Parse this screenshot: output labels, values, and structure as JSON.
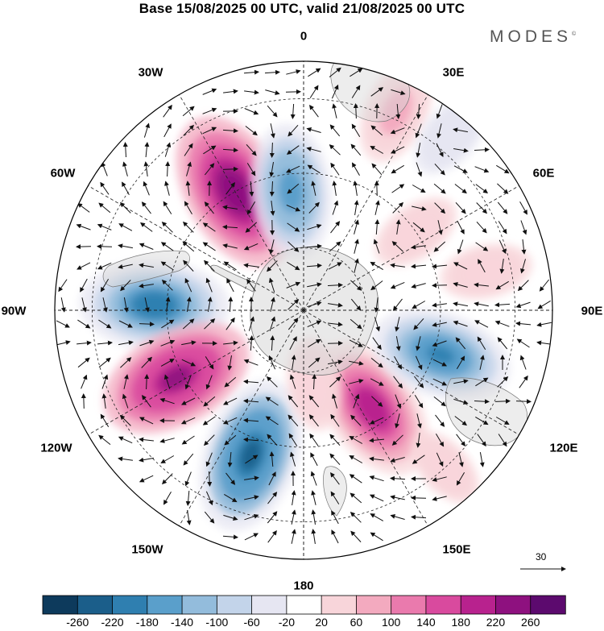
{
  "title": "Base 15/08/2025 00 UTC, valid 21/08/2025 00 UTC",
  "brand": "MODES",
  "brand_mark": "©",
  "map": {
    "projection": "south polar stereographic",
    "longitude_labels": [
      "0",
      "30E",
      "60E",
      "90E",
      "120E",
      "150E",
      "180",
      "150W",
      "120W",
      "90W",
      "60W",
      "30W"
    ],
    "anomalies": [
      {
        "lon": -30,
        "colat": 0.55,
        "value": 260
      },
      {
        "lon": -88,
        "colat": 0.6,
        "value": -220
      },
      {
        "lon": -118,
        "colat": 0.58,
        "value": 240
      },
      {
        "lon": -160,
        "colat": 0.62,
        "value": -240
      },
      {
        "lon": 145,
        "colat": 0.48,
        "value": 220
      },
      {
        "lon": 108,
        "colat": 0.58,
        "value": -200
      },
      {
        "lon": -6,
        "colat": 0.48,
        "value": -180
      },
      {
        "lon": 25,
        "colat": 0.88,
        "value": 100
      },
      {
        "lon": 55,
        "colat": 0.55,
        "value": 60
      },
      {
        "lon": 78,
        "colat": 0.75,
        "value": 60
      },
      {
        "lon": 172,
        "colat": 0.3,
        "value": 60
      },
      {
        "lon": 40,
        "colat": 0.92,
        "value": -60
      },
      {
        "lon": 138,
        "colat": 0.85,
        "value": 40
      }
    ]
  },
  "vector_reference": {
    "value": "30"
  },
  "colorbar": {
    "levels": [
      "-260",
      "-220",
      "-180",
      "-140",
      "-100",
      "-60",
      "-20",
      "20",
      "60",
      "100",
      "140",
      "180",
      "220",
      "260"
    ],
    "colors": [
      "#0d3a5c",
      "#1b5e8a",
      "#2f7fb0",
      "#5a9fcb",
      "#93bcdc",
      "#c3d4ea",
      "#e6e6f2",
      "#ffffff",
      "#f8d5da",
      "#f3aabf",
      "#ea7aad",
      "#d94a9e",
      "#b8228e",
      "#8e117f",
      "#5c0a6e"
    ]
  }
}
